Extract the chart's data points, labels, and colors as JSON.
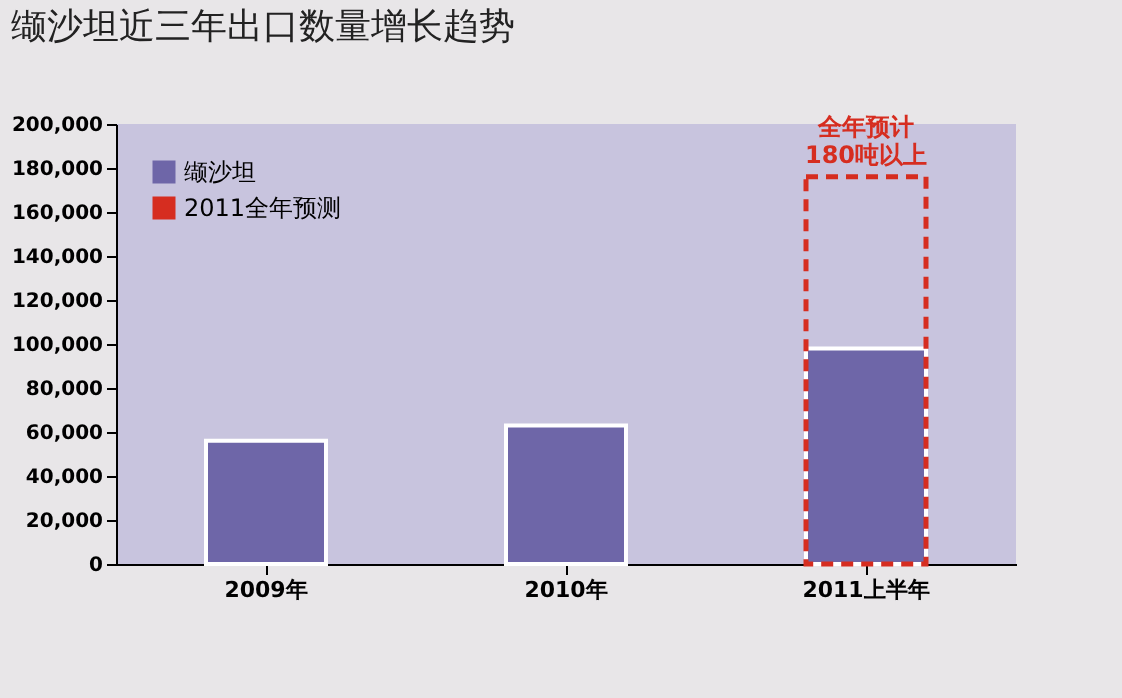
{
  "chart_data": {
    "type": "bar",
    "title": "缬沙坦近三年出口数量增长趋势",
    "categories": [
      "2009年",
      "2010年",
      "2011上半年"
    ],
    "series": [
      {
        "name": "缬沙坦",
        "color": "#6e66a8",
        "values": [
          56000,
          63000,
          98000
        ]
      },
      {
        "name": "2011全年预测",
        "color": "#d62d20",
        "values": [
          null,
          null,
          176000
        ],
        "line_style": "dashed"
      }
    ],
    "ylim": [
      0,
      200000
    ],
    "yticks": [
      0,
      {
        "value": 20000,
        "label": "20,000"
      },
      {
        "value": 40000,
        "label": "40,000"
      },
      {
        "value": 60000,
        "label": "60,000"
      },
      {
        "value": 80000,
        "label": "80,000"
      },
      {
        "value": 100000,
        "label": "100,000"
      },
      {
        "value": 120000,
        "label": "120,000"
      },
      {
        "value": 140000,
        "label": "140,000"
      },
      {
        "value": 160000,
        "label": "160,000"
      },
      {
        "value": 180000,
        "label": "180,000"
      },
      {
        "value": 200000,
        "label": "200,000"
      }
    ],
    "legend": "top left",
    "grid": false,
    "annotations": [
      {
        "text": "全年预计\n180吨以上",
        "x": "2011上半年",
        "y": 176000
      }
    ]
  }
}
